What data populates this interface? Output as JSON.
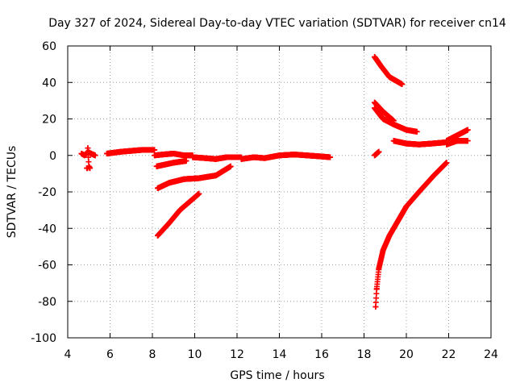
{
  "chart_data": {
    "type": "scatter",
    "title": "Day 327 of 2024, Sidereal Day-to-day VTEC variation (SDTVAR) for receiver cn14",
    "xlabel": "GPS time / hours",
    "ylabel": "SDTVAR / TECUs",
    "xlim": [
      4,
      24
    ],
    "ylim": [
      -100,
      60
    ],
    "xticks": [
      4,
      6,
      8,
      10,
      12,
      14,
      16,
      18,
      20,
      22,
      24
    ],
    "yticks": [
      -100,
      -80,
      -60,
      -40,
      -20,
      0,
      20,
      40,
      60
    ],
    "grid": true,
    "marker": "plus",
    "color": "#ff0000",
    "segments": [
      {
        "x0": 4.65,
        "x1": 5.3,
        "y": [
          [
            4.65,
            1
          ],
          [
            4.8,
            0
          ],
          [
            4.95,
            2
          ],
          [
            5.1,
            1
          ],
          [
            5.3,
            0
          ]
        ]
      },
      {
        "x0": 4.9,
        "x1": 5.05,
        "y": [
          [
            4.95,
            4
          ],
          [
            5.0,
            -6
          ],
          [
            5.05,
            -7
          ]
        ]
      },
      {
        "x0": 5.85,
        "x1": 8.1,
        "y": [
          [
            5.85,
            1
          ],
          [
            6.5,
            2
          ],
          [
            7.0,
            2.5
          ],
          [
            7.5,
            3
          ],
          [
            8.1,
            3
          ]
        ]
      },
      {
        "x0": 8.1,
        "x1": 9.9,
        "y": [
          [
            8.1,
            0
          ],
          [
            8.5,
            0.5
          ],
          [
            9.0,
            1
          ],
          [
            9.5,
            0
          ],
          [
            9.9,
            0
          ]
        ]
      },
      {
        "x0": 9.9,
        "x1": 12.2,
        "y": [
          [
            9.9,
            -1
          ],
          [
            10.5,
            -1.5
          ],
          [
            11.0,
            -2
          ],
          [
            11.5,
            -1
          ],
          [
            12.2,
            -1
          ]
        ]
      },
      {
        "x0": 12.2,
        "x1": 14.0,
        "y": [
          [
            12.2,
            -2
          ],
          [
            12.8,
            -1
          ],
          [
            13.3,
            -1.5
          ],
          [
            14.0,
            0
          ]
        ]
      },
      {
        "x0": 14.0,
        "x1": 16.4,
        "y": [
          [
            14.0,
            0
          ],
          [
            14.7,
            0.5
          ],
          [
            15.3,
            0
          ],
          [
            15.9,
            -0.5
          ],
          [
            16.4,
            -1
          ]
        ]
      },
      {
        "x0": 8.2,
        "x1": 9.6,
        "y": [
          [
            8.2,
            -6
          ],
          [
            8.6,
            -5
          ],
          [
            9.0,
            -4
          ],
          [
            9.6,
            -3
          ]
        ]
      },
      {
        "x0": 8.25,
        "x1": 11.7,
        "y": [
          [
            8.25,
            -18
          ],
          [
            8.8,
            -15
          ],
          [
            9.5,
            -13
          ],
          [
            10.2,
            -12.5
          ],
          [
            11.0,
            -11
          ],
          [
            11.7,
            -6
          ]
        ]
      },
      {
        "x0": 8.25,
        "x1": 10.2,
        "y": [
          [
            8.25,
            -44
          ],
          [
            8.8,
            -37
          ],
          [
            9.3,
            -30
          ],
          [
            9.8,
            -25
          ],
          [
            10.2,
            -21
          ]
        ]
      },
      {
        "x0": 18.5,
        "x1": 18.7,
        "y": [
          [
            18.5,
            0
          ],
          [
            18.7,
            2
          ]
        ]
      },
      {
        "x0": 18.5,
        "x1": 19.8,
        "y": [
          [
            18.5,
            54
          ],
          [
            18.8,
            49
          ],
          [
            19.2,
            43
          ],
          [
            19.8,
            39
          ]
        ]
      },
      {
        "x0": 18.5,
        "x1": 19.4,
        "y": [
          [
            18.5,
            29
          ],
          [
            18.9,
            24
          ],
          [
            19.4,
            19
          ]
        ]
      },
      {
        "x0": 18.5,
        "x1": 20.5,
        "y": [
          [
            18.5,
            26
          ],
          [
            18.9,
            20
          ],
          [
            19.4,
            17
          ],
          [
            20.0,
            14
          ],
          [
            20.5,
            13
          ]
        ]
      },
      {
        "x0": 19.4,
        "x1": 22.1,
        "y": [
          [
            19.4,
            8
          ],
          [
            20.0,
            6.5
          ],
          [
            20.6,
            6
          ],
          [
            21.2,
            6.5
          ],
          [
            21.7,
            7
          ],
          [
            22.1,
            7.5
          ]
        ]
      },
      {
        "x0": 21.9,
        "x1": 22.9,
        "y": [
          [
            21.9,
            8
          ],
          [
            22.4,
            11
          ],
          [
            22.9,
            14
          ]
        ]
      },
      {
        "x0": 21.9,
        "x1": 22.9,
        "y": [
          [
            21.9,
            6
          ],
          [
            22.4,
            8
          ],
          [
            22.9,
            8
          ]
        ]
      },
      {
        "x0": 18.55,
        "x1": 21.9,
        "y": [
          [
            18.55,
            -83
          ],
          [
            18.6,
            -73
          ],
          [
            18.7,
            -62
          ],
          [
            18.9,
            -52
          ],
          [
            19.2,
            -44
          ],
          [
            19.6,
            -36
          ],
          [
            20.0,
            -28
          ],
          [
            20.6,
            -20
          ],
          [
            21.3,
            -11
          ],
          [
            21.9,
            -4
          ]
        ]
      }
    ]
  }
}
